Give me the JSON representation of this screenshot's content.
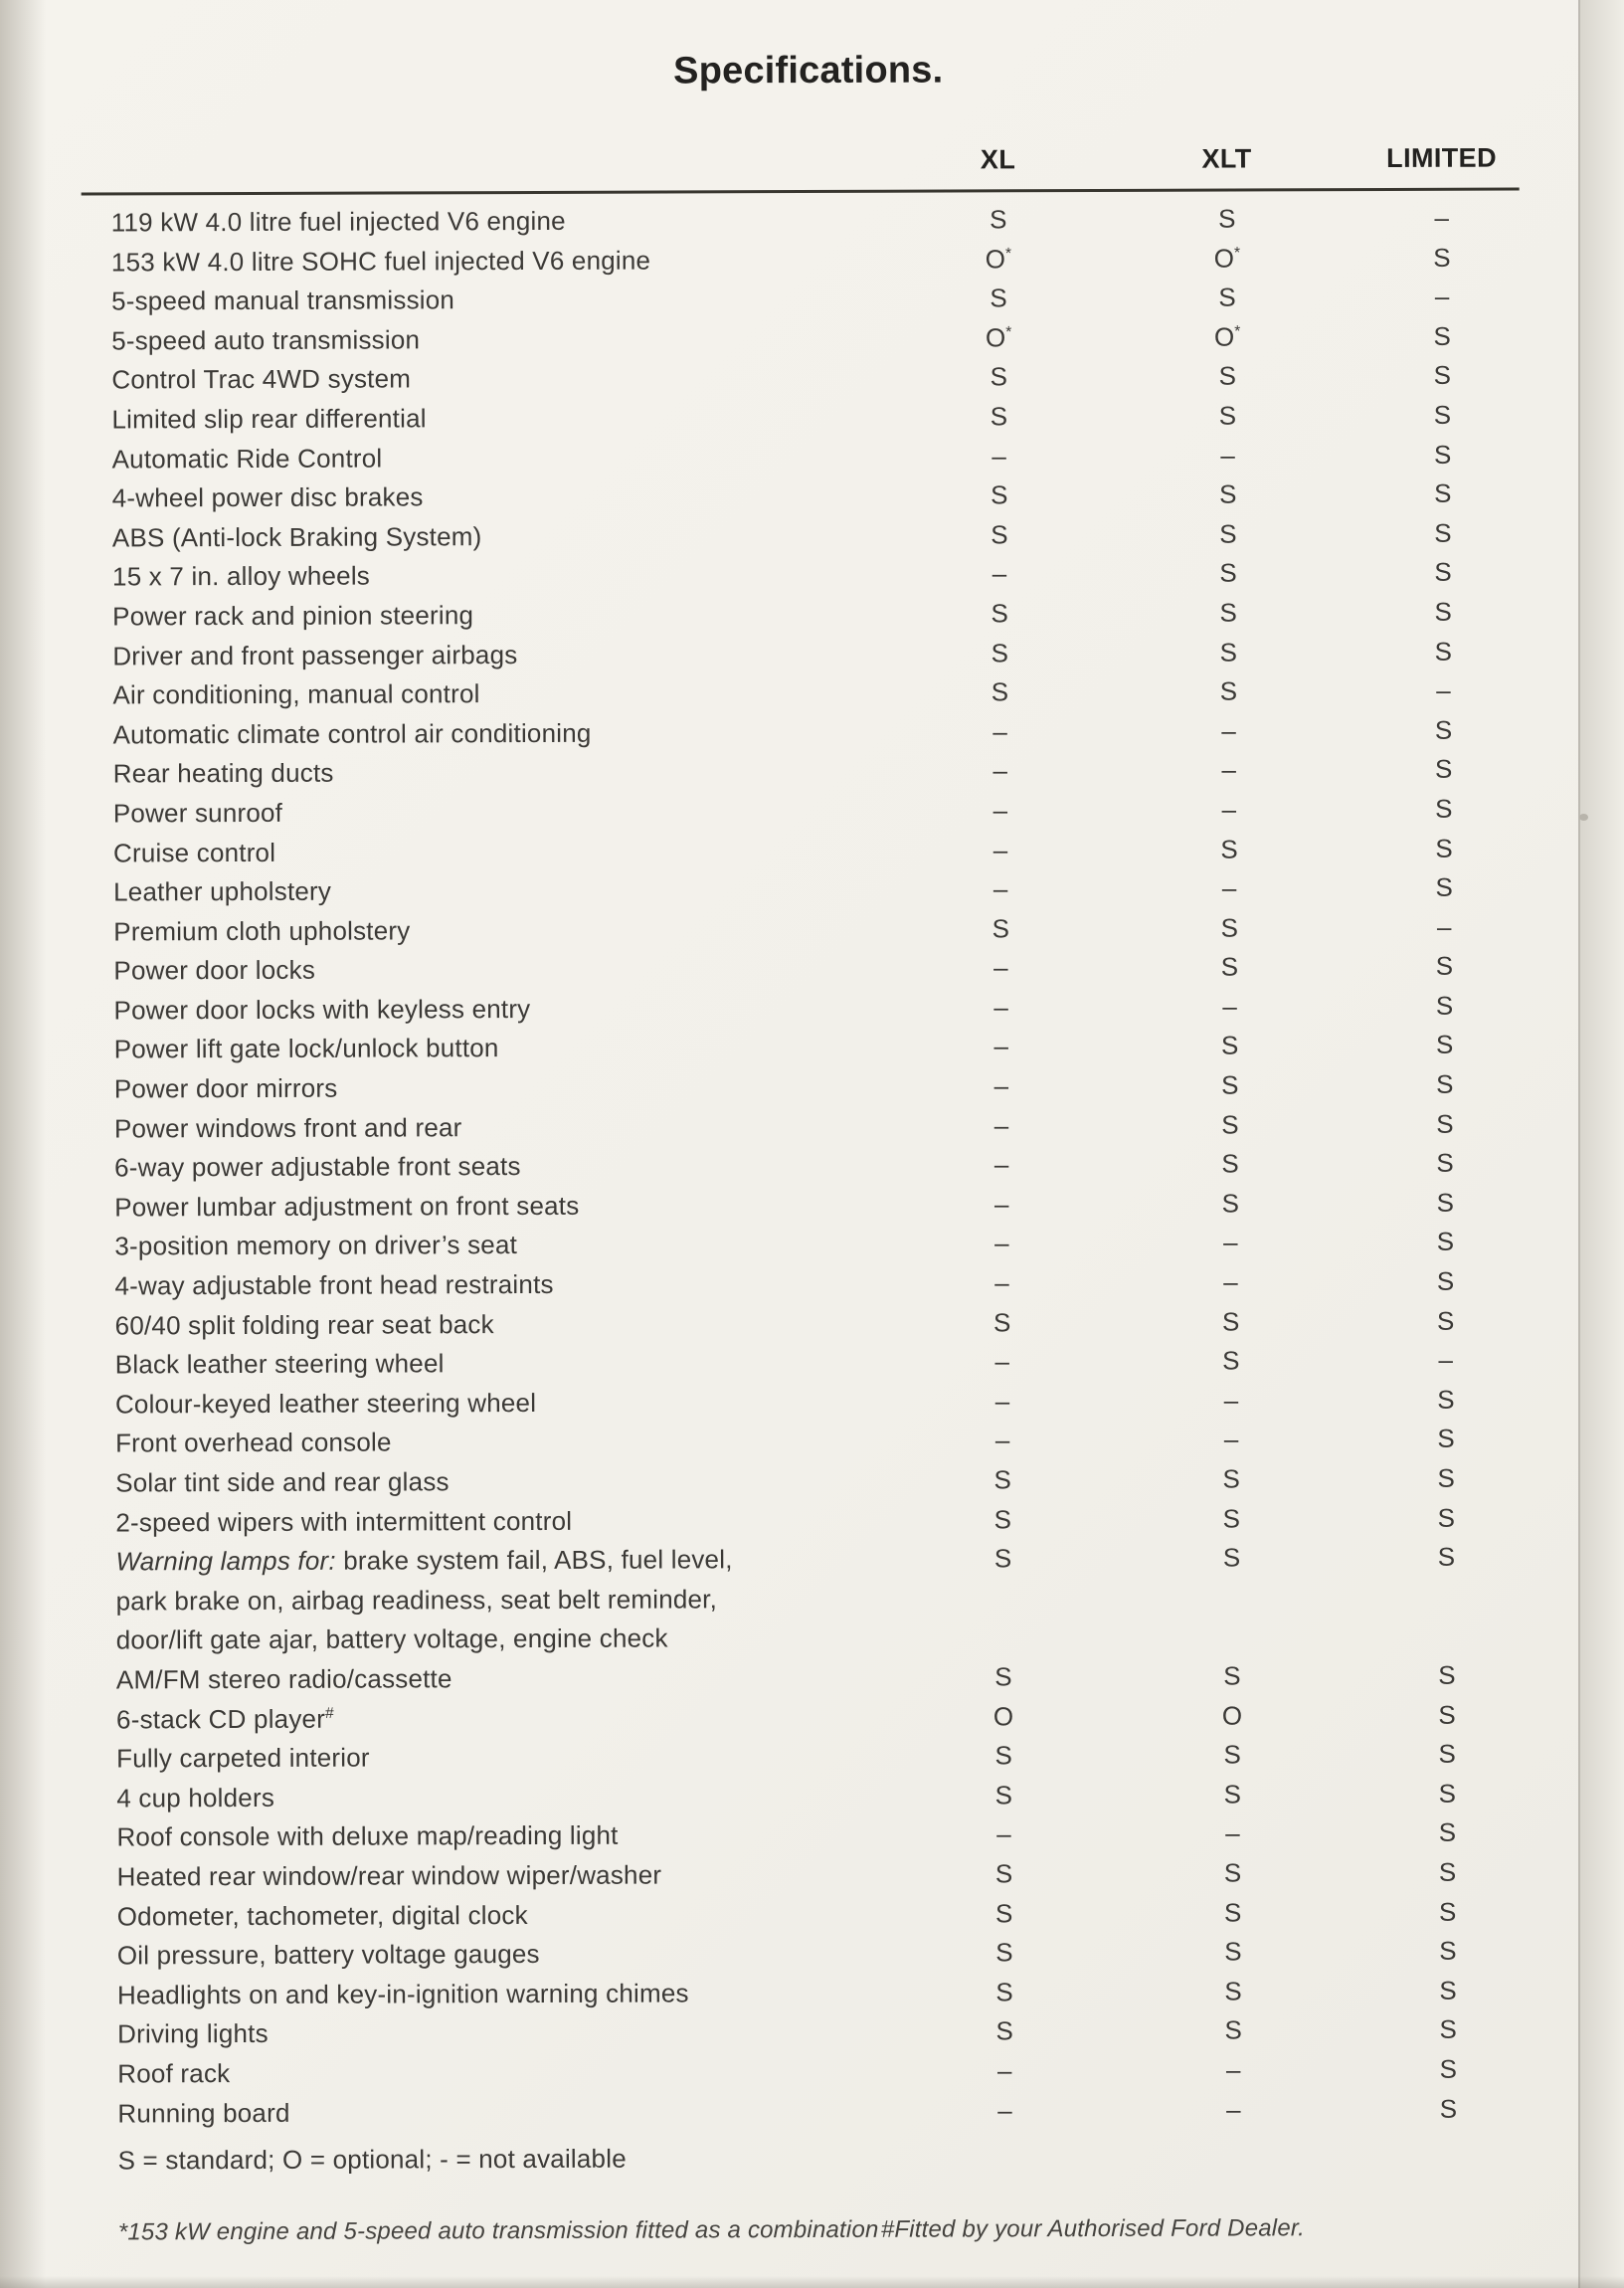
{
  "title": "Specifications.",
  "columns": [
    "XL",
    "XLT",
    "LIMITED"
  ],
  "legend": "S = standard; O = optional; - = not available",
  "footnotes": {
    "left": "*153 kW engine and 5-speed auto transmission fitted as a combination",
    "right": "#Fitted by your Authorised Ford Dealer."
  },
  "colors": {
    "paper": "#f2f0ea",
    "ink": "#3b3936",
    "heading_ink": "#232220"
  },
  "table": {
    "rows": [
      {
        "label": "119 kW 4.0 litre fuel injected V6 engine",
        "values": [
          "S",
          "S",
          "–"
        ]
      },
      {
        "label": "153 kW 4.0 litre SOHC fuel injected V6 engine",
        "values": [
          "O*",
          "O*",
          "S"
        ]
      },
      {
        "label": "5-speed manual transmission",
        "values": [
          "S",
          "S",
          "–"
        ]
      },
      {
        "label": "5-speed auto transmission",
        "values": [
          "O*",
          "O*",
          "S"
        ]
      },
      {
        "label": "Control Trac 4WD system",
        "values": [
          "S",
          "S",
          "S"
        ]
      },
      {
        "label": "Limited slip rear differential",
        "values": [
          "S",
          "S",
          "S"
        ]
      },
      {
        "label": "Automatic Ride Control",
        "values": [
          "–",
          "–",
          "S"
        ]
      },
      {
        "label": "4-wheel power disc brakes",
        "values": [
          "S",
          "S",
          "S"
        ]
      },
      {
        "label": "ABS (Anti-lock Braking System)",
        "values": [
          "S",
          "S",
          "S"
        ]
      },
      {
        "label": "15 x 7 in. alloy wheels",
        "values": [
          "–",
          "S",
          "S"
        ]
      },
      {
        "label": "Power rack and pinion steering",
        "values": [
          "S",
          "S",
          "S"
        ]
      },
      {
        "label": "Driver and front passenger airbags",
        "values": [
          "S",
          "S",
          "S"
        ]
      },
      {
        "label": "Air conditioning, manual control",
        "values": [
          "S",
          "S",
          "–"
        ]
      },
      {
        "label": "Automatic climate control air conditioning",
        "values": [
          "–",
          "–",
          "S"
        ]
      },
      {
        "label": "Rear heating ducts",
        "values": [
          "–",
          "–",
          "S"
        ]
      },
      {
        "label": "Power sunroof",
        "values": [
          "–",
          "–",
          "S"
        ]
      },
      {
        "label": "Cruise control",
        "values": [
          "–",
          "S",
          "S"
        ]
      },
      {
        "label": "Leather upholstery",
        "values": [
          "–",
          "–",
          "S"
        ]
      },
      {
        "label": "Premium cloth upholstery",
        "values": [
          "S",
          "S",
          "–"
        ]
      },
      {
        "label": "Power door locks",
        "values": [
          "–",
          "S",
          "S"
        ]
      },
      {
        "label": "Power door locks with keyless entry",
        "values": [
          "–",
          "–",
          "S"
        ]
      },
      {
        "label": "Power lift gate lock/unlock button",
        "values": [
          "–",
          "S",
          "S"
        ]
      },
      {
        "label": "Power door mirrors",
        "values": [
          "–",
          "S",
          "S"
        ]
      },
      {
        "label": "Power windows front and rear",
        "values": [
          "–",
          "S",
          "S"
        ]
      },
      {
        "label": "6-way power adjustable front seats",
        "values": [
          "–",
          "S",
          "S"
        ]
      },
      {
        "label": "Power lumbar adjustment on front seats",
        "values": [
          "–",
          "S",
          "S"
        ]
      },
      {
        "label": "3-position memory on driver’s seat",
        "values": [
          "–",
          "–",
          "S"
        ]
      },
      {
        "label": "4-way adjustable front head restraints",
        "values": [
          "–",
          "–",
          "S"
        ]
      },
      {
        "label": "60/40 split folding rear seat back",
        "values": [
          "S",
          "S",
          "S"
        ]
      },
      {
        "label": "Black leather steering wheel",
        "values": [
          "–",
          "S",
          "–"
        ]
      },
      {
        "label": "Colour-keyed leather steering wheel",
        "values": [
          "–",
          "–",
          "S"
        ]
      },
      {
        "label": "Front overhead console",
        "values": [
          "–",
          "–",
          "S"
        ]
      },
      {
        "label": "Solar tint side and rear glass",
        "values": [
          "S",
          "S",
          "S"
        ]
      },
      {
        "label": "2-speed wipers with intermittent control",
        "values": [
          "S",
          "S",
          "S"
        ]
      },
      {
        "label_prefix_italic": "Warning lamps for:",
        "label": " brake system fail, ABS, fuel level,\npark brake on, airbag readiness, seat belt reminder,\ndoor/lift gate ajar, battery voltage, engine check",
        "values": [
          "S",
          "S",
          "S"
        ]
      },
      {
        "label": "AM/FM stereo radio/cassette",
        "values": [
          "S",
          "S",
          "S"
        ]
      },
      {
        "label": "6-stack CD player",
        "label_sup": "#",
        "values": [
          "O",
          "O",
          "S"
        ]
      },
      {
        "label": "Fully carpeted interior",
        "values": [
          "S",
          "S",
          "S"
        ]
      },
      {
        "label": "4 cup holders",
        "values": [
          "S",
          "S",
          "S"
        ]
      },
      {
        "label": "Roof console with deluxe map/reading light",
        "values": [
          "–",
          "–",
          "S"
        ]
      },
      {
        "label": "Heated rear window/rear window wiper/washer",
        "values": [
          "S",
          "S",
          "S"
        ]
      },
      {
        "label": "Odometer, tachometer, digital clock",
        "values": [
          "S",
          "S",
          "S"
        ]
      },
      {
        "label": "Oil pressure, battery voltage gauges",
        "values": [
          "S",
          "S",
          "S"
        ]
      },
      {
        "label": "Headlights on and key-in-ignition warning chimes",
        "values": [
          "S",
          "S",
          "S"
        ]
      },
      {
        "label": "Driving lights",
        "values": [
          "S",
          "S",
          "S"
        ]
      },
      {
        "label": "Roof rack",
        "values": [
          "–",
          "–",
          "S"
        ]
      },
      {
        "label": "Running board",
        "values": [
          "–",
          "–",
          "S"
        ]
      }
    ]
  }
}
